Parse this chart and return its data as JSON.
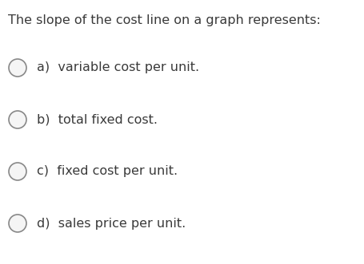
{
  "background_color": "#ffffff",
  "question": "The slope of the cost line on a graph represents:",
  "options": [
    "a)  variable cost per unit.",
    "b)  total fixed cost.",
    "c)  fixed cost per unit.",
    "d)  sales price per unit."
  ],
  "question_fontsize": 11.5,
  "option_fontsize": 11.5,
  "text_color": "#3a3a3a",
  "circle_edge_color": "#888888",
  "circle_face_color": "#f5f5f5",
  "circle_linewidth": 1.2,
  "fig_width": 4.55,
  "fig_height": 3.31,
  "dpi": 100
}
